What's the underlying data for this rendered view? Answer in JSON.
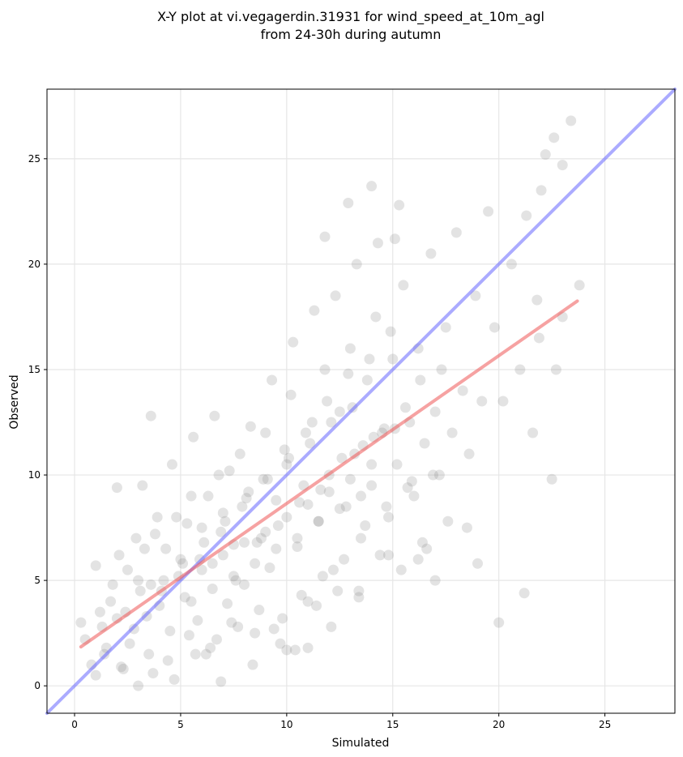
{
  "chart_data": {
    "type": "scatter",
    "title_line1": "X-Y plot at vi.vegagerdin.31931 for wind_speed_at_10m_agl",
    "title_line2": "from 24-30h during autumn",
    "xlabel": "Simulated",
    "ylabel": "Observed",
    "xlim": [
      -1.3,
      28.3
    ],
    "ylim": [
      -1.3,
      28.3
    ],
    "xticks": [
      0,
      5,
      10,
      15,
      20,
      25
    ],
    "yticks": [
      0,
      5,
      10,
      15,
      20,
      25
    ],
    "grid": true,
    "point_color": "#808080",
    "identity_line": {
      "x": [
        -1.3,
        28.3
      ],
      "y": [
        -1.3,
        28.3
      ],
      "color": "#6666ff"
    },
    "fit_line": {
      "x": [
        0.3,
        23.7
      ],
      "y": [
        1.85,
        18.25
      ],
      "color": "#ee5555"
    },
    "points": {
      "x": [
        0.3,
        0.5,
        0.8,
        1.0,
        1.2,
        1.5,
        1.8,
        2.0,
        2.2,
        2.5,
        2.8,
        3.0,
        3.1,
        3.3,
        3.5,
        3.8,
        4.0,
        4.2,
        4.5,
        4.8,
        5.0,
        5.2,
        5.5,
        5.8,
        6.0,
        6.2,
        6.5,
        6.8,
        7.0,
        7.2,
        7.5,
        7.8,
        8.0,
        8.2,
        8.5,
        8.8,
        9.0,
        9.2,
        9.5,
        9.8,
        10.0,
        10.2,
        10.5,
        10.8,
        11.0,
        11.2,
        11.5,
        11.8,
        12.0,
        12.2,
        12.5,
        12.8,
        13.0,
        13.2,
        13.5,
        13.8,
        14.0,
        14.2,
        14.5,
        14.8,
        15.0,
        15.2,
        15.5,
        15.8,
        16.0,
        16.2,
        16.5,
        16.8,
        17.0,
        17.2,
        17.5,
        17.8,
        18.0,
        18.3,
        18.6,
        18.9,
        19.2,
        19.5,
        19.8,
        20.2,
        20.6,
        21.0,
        21.3,
        21.6,
        21.9,
        22.2,
        22.6,
        23.0,
        23.4,
        23.8,
        1.0,
        1.3,
        1.7,
        2.1,
        2.4,
        2.9,
        3.2,
        3.6,
        3.9,
        4.3,
        4.6,
        4.9,
        5.3,
        5.6,
        5.9,
        6.3,
        6.6,
        6.9,
        7.3,
        7.6,
        7.9,
        8.3,
        8.6,
        8.9,
        9.3,
        9.6,
        9.9,
        10.3,
        10.6,
        10.9,
        11.3,
        11.6,
        11.9,
        12.3,
        12.6,
        12.9,
        13.3,
        13.6,
        13.9,
        14.3,
        14.6,
        14.9,
        15.3,
        15.6,
        15.9,
        16.3,
        16.6,
        16.9,
        17.3,
        17.6,
        1.4,
        2.6,
        3.4,
        4.4,
        5.4,
        6.4,
        7.4,
        8.4,
        9.4,
        10.4,
        11.4,
        12.4,
        13.4,
        14.4,
        15.4,
        16.4,
        2.3,
        3.7,
        4.7,
        5.7,
        6.7,
        7.7,
        8.7,
        9.7,
        10.7,
        11.7,
        12.7,
        13.7,
        14.7,
        15.7,
        3.0,
        4.1,
        5.1,
        6.1,
        7.1,
        8.1,
        9.1,
        10.1,
        11.1,
        12.1,
        13.1,
        14.1,
        15.1,
        6.0,
        7.0,
        8.0,
        9.0,
        10.0,
        11.0,
        12.0,
        13.0,
        14.0,
        5.5,
        6.5,
        7.5,
        8.5,
        9.5,
        10.5,
        11.5,
        12.5,
        13.5,
        3.6,
        6.9,
        2.0,
        19.0,
        21.2,
        20.0,
        22.5,
        18.5,
        17.0,
        16.2,
        14.8,
        13.4,
        12.1,
        11.0,
        10.0,
        22.0,
        23.0,
        21.8,
        22.7,
        14.0,
        15.1,
        12.9,
        11.8
      ],
      "y": [
        3.0,
        2.2,
        1.0,
        0.5,
        3.5,
        1.8,
        4.8,
        3.2,
        0.9,
        5.5,
        2.7,
        0.0,
        4.5,
        6.5,
        1.5,
        7.2,
        3.8,
        5.0,
        2.6,
        8.0,
        6.0,
        4.2,
        9.0,
        3.1,
        7.5,
        1.5,
        5.8,
        10.0,
        8.2,
        3.9,
        6.7,
        11.0,
        4.8,
        9.2,
        2.5,
        7.0,
        12.0,
        5.6,
        8.8,
        3.2,
        10.5,
        13.8,
        6.6,
        9.5,
        4.0,
        12.5,
        7.8,
        15.0,
        10.0,
        5.5,
        13.0,
        8.5,
        16.0,
        11.0,
        7.0,
        14.5,
        9.5,
        17.5,
        12.0,
        8.0,
        15.5,
        10.5,
        19.0,
        12.5,
        9.0,
        16.0,
        11.5,
        20.5,
        13.0,
        10.0,
        17.0,
        12.0,
        21.5,
        14.0,
        11.0,
        18.5,
        13.5,
        22.5,
        17.0,
        13.5,
        20.0,
        15.0,
        22.3,
        12.0,
        16.5,
        25.2,
        26.0,
        17.5,
        26.8,
        19.0,
        5.7,
        2.8,
        4.0,
        6.2,
        3.5,
        7.0,
        9.5,
        4.8,
        8.0,
        6.5,
        10.5,
        5.2,
        7.7,
        11.8,
        6.0,
        9.0,
        12.8,
        7.3,
        10.2,
        5.0,
        8.5,
        12.3,
        6.8,
        9.8,
        14.5,
        7.6,
        11.2,
        16.3,
        8.7,
        12.0,
        17.8,
        9.3,
        13.5,
        18.5,
        10.8,
        14.8,
        20.0,
        11.4,
        15.5,
        21.0,
        12.2,
        16.8,
        22.8,
        13.2,
        9.7,
        14.5,
        6.5,
        10.0,
        15.0,
        7.8,
        1.5,
        2.0,
        3.3,
        1.2,
        2.4,
        1.8,
        3.0,
        1.0,
        2.7,
        1.7,
        3.8,
        4.5,
        4.2,
        6.2,
        5.5,
        6.8,
        0.8,
        0.6,
        0.3,
        1.5,
        2.2,
        2.8,
        3.6,
        2.0,
        4.3,
        5.2,
        6.0,
        7.6,
        8.5,
        9.4,
        5.0,
        4.5,
        5.8,
        6.8,
        7.8,
        8.9,
        9.8,
        10.8,
        11.5,
        12.5,
        13.2,
        11.8,
        12.2,
        5.5,
        6.2,
        6.8,
        7.3,
        8.0,
        8.6,
        9.2,
        9.8,
        10.5,
        4.0,
        4.6,
        5.2,
        5.8,
        6.5,
        7.0,
        7.8,
        8.4,
        9.0,
        12.8,
        0.2,
        9.4,
        5.8,
        4.4,
        3.0,
        9.8,
        7.5,
        5.0,
        6.0,
        6.2,
        4.5,
        2.8,
        1.8,
        1.7,
        23.5,
        24.7,
        18.3,
        15.0,
        23.7,
        21.2,
        22.9,
        21.3
      ]
    }
  }
}
